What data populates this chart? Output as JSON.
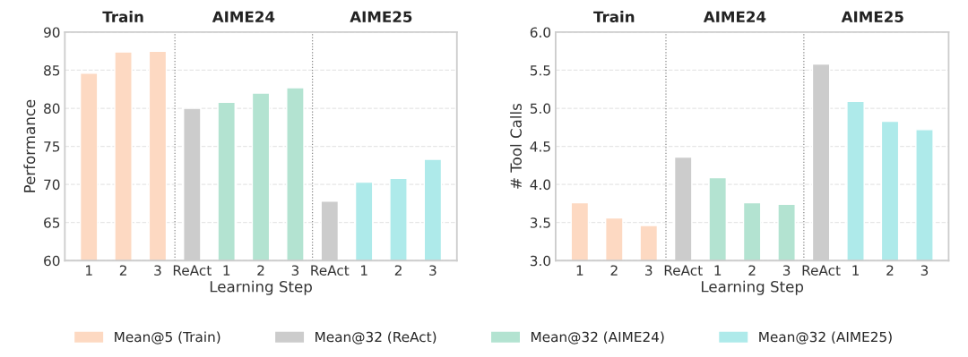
{
  "chart_data": [
    {
      "type": "bar",
      "xlabel": "Learning Step",
      "ylabel": "Performance",
      "categories": [
        "1",
        "2",
        "3",
        "ReAct",
        "1",
        "2",
        "3",
        "ReAct",
        "1",
        "2",
        "3"
      ],
      "series": [
        {
          "name": "Mean@5 (Train)",
          "color": "#fdd9c2",
          "values": [
            84.6,
            87.4,
            87.5,
            null,
            null,
            null,
            null,
            null,
            null,
            null,
            null
          ]
        },
        {
          "name": "Mean@32 (ReAct)",
          "color": "#cccccc",
          "values": [
            null,
            null,
            null,
            80.0,
            null,
            null,
            null,
            67.8,
            null,
            null,
            null
          ]
        },
        {
          "name": "Mean@32 (AIME24)",
          "color": "#b3e3d1",
          "values": [
            null,
            null,
            null,
            null,
            80.8,
            82.0,
            82.7,
            null,
            null,
            null,
            null
          ]
        },
        {
          "name": "Mean@32 (AIME25)",
          "color": "#aeeaea",
          "values": [
            null,
            null,
            null,
            null,
            null,
            null,
            null,
            null,
            70.3,
            70.8,
            73.3
          ]
        }
      ],
      "ylim": [
        60,
        90
      ],
      "yticks": [
        60,
        65,
        70,
        75,
        80,
        85,
        90
      ],
      "grid": "y",
      "legend": "bottom",
      "annotations": [
        "Train",
        "AIME24",
        "AIME25"
      ]
    },
    {
      "type": "bar",
      "xlabel": "Learning Step",
      "ylabel": "# Tool Calls",
      "categories": [
        "1",
        "2",
        "3",
        "ReAct",
        "1",
        "2",
        "3",
        "ReAct",
        "1",
        "2",
        "3"
      ],
      "series": [
        {
          "color": "#fdd9c2",
          "values": [
            3.76,
            3.56,
            3.46,
            null,
            null,
            null,
            null,
            null,
            null,
            null,
            null
          ]
        },
        {
          "color": "#cccccc",
          "values": [
            null,
            null,
            null,
            4.36,
            null,
            null,
            null,
            5.58,
            null,
            null,
            null
          ]
        },
        {
          "color": "#b3e3d1",
          "values": [
            null,
            null,
            null,
            null,
            4.09,
            3.76,
            3.74,
            null,
            null,
            null,
            null
          ]
        },
        {
          "color": "#aeeaea",
          "values": [
            null,
            null,
            null,
            null,
            null,
            null,
            null,
            null,
            5.09,
            4.83,
            4.72
          ]
        }
      ],
      "ylim": [
        3.0,
        6.0
      ],
      "yticks": [
        {
          "value": 3.0,
          "label": "3.0"
        },
        {
          "value": 3.5,
          "label": "3.5"
        },
        {
          "value": 4.0,
          "label": "4.0"
        },
        {
          "value": 4.5,
          "label": "4.5"
        },
        {
          "value": 5.0,
          "label": "5.0"
        },
        {
          "value": 5.5,
          "label": "5.5"
        },
        {
          "value": 6.0,
          "label": "6.0"
        }
      ],
      "grid": "y",
      "annotations": [
        "Train",
        "AIME24",
        "AIME25"
      ]
    }
  ]
}
